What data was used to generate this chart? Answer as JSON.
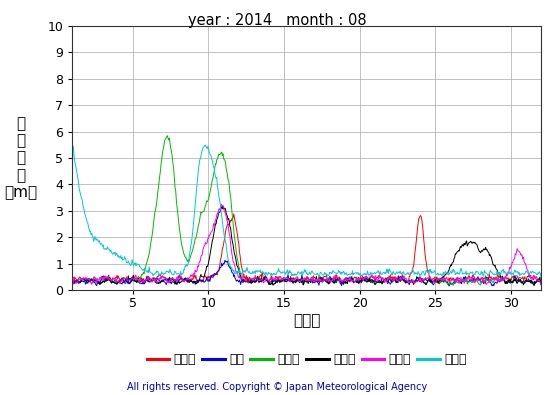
{
  "title": "year : 2014   month : 08",
  "xlabel": "（日）",
  "ylabel_lines": [
    "有",
    "義",
    "波",
    "高",
    "（m）"
  ],
  "ylim": [
    0,
    10
  ],
  "yticks": [
    0,
    1,
    2,
    3,
    4,
    5,
    6,
    7,
    8,
    9,
    10
  ],
  "xlim": [
    1,
    32
  ],
  "xticks": [
    5,
    10,
    15,
    20,
    25,
    30
  ],
  "copyright_text": "All rights reserved. Copyright © Japan Meteorological Agency",
  "series": [
    {
      "name": "上ノ国",
      "color": "#ff0000"
    },
    {
      "name": "唐桑",
      "color": "#0000ff"
    },
    {
      "name": "石廈崎",
      "color": "#00bb00"
    },
    {
      "name": "経ヶ崎",
      "color": "#000000"
    },
    {
      "name": "生月島",
      "color": "#ff00ff"
    },
    {
      "name": "屋久島",
      "color": "#00cccc"
    }
  ],
  "background_color": "#ffffff",
  "grid_color": "#aaaaaa"
}
